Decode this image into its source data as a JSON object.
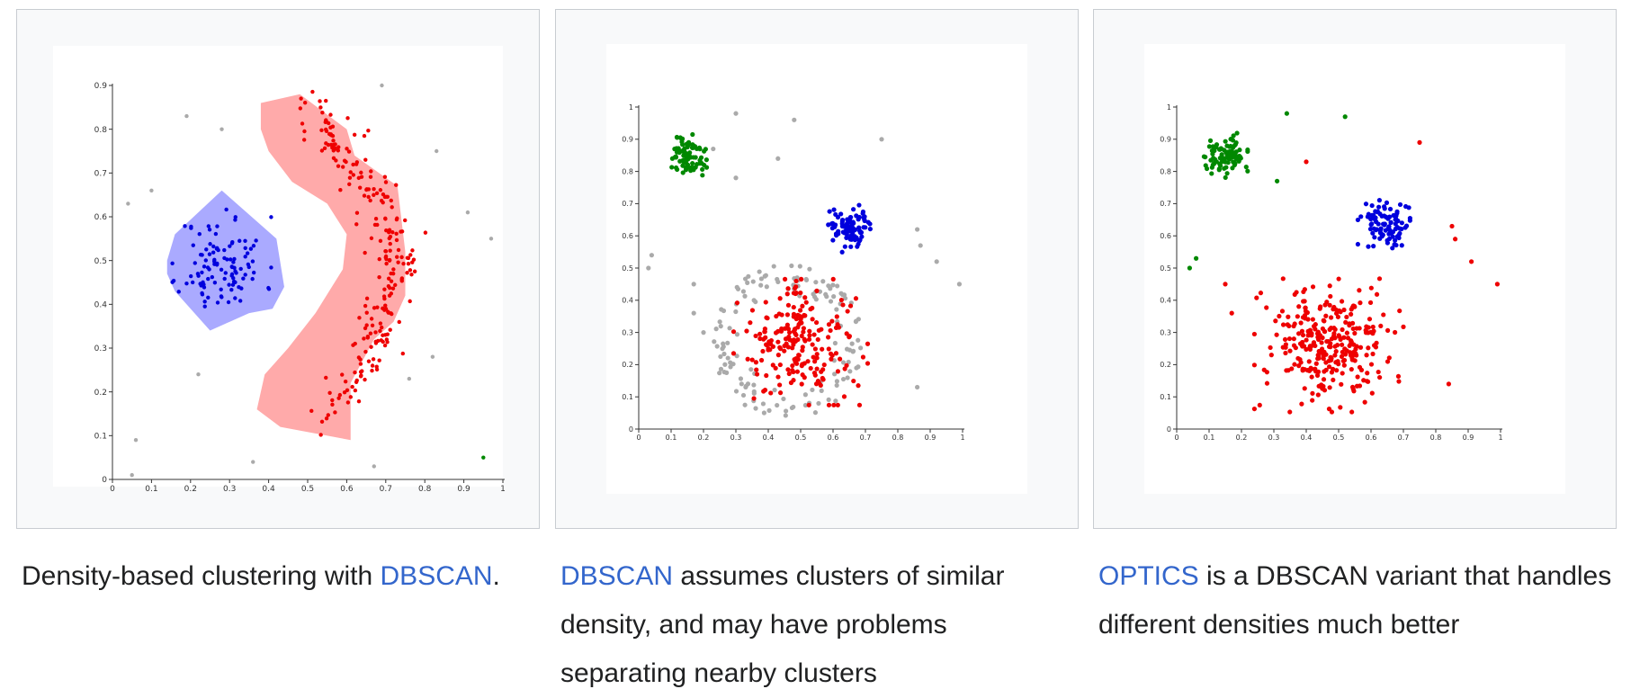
{
  "gallery": [
    {
      "caption": {
        "pre": "Density-based clustering with ",
        "link": "DBSCAN",
        "post": "."
      },
      "chart_data": {
        "type": "scatter",
        "title": "",
        "xlabel": "",
        "ylabel": "",
        "xlim": [
          0,
          1
        ],
        "ylim": [
          0,
          0.9
        ],
        "xticks": [
          "0",
          "0.1",
          "0.2",
          "0.3",
          "0.4",
          "0.5",
          "0.6",
          "0.7",
          "0.8",
          "0.9",
          "1"
        ],
        "yticks": [
          "0",
          "0.1",
          "0.2",
          "0.3",
          "0.4",
          "0.5",
          "0.6",
          "0.7",
          "0.8",
          "0.9"
        ],
        "grid": false,
        "hulls": [
          {
            "color": "#aaaaff",
            "points": [
              [
                0.14,
                0.5
              ],
              [
                0.16,
                0.56
              ],
              [
                0.28,
                0.66
              ],
              [
                0.42,
                0.55
              ],
              [
                0.44,
                0.44
              ],
              [
                0.41,
                0.39
              ],
              [
                0.35,
                0.38
              ],
              [
                0.25,
                0.34
              ],
              [
                0.16,
                0.43
              ],
              [
                0.14,
                0.47
              ]
            ]
          },
          {
            "color": "#ffaaaa",
            "points": [
              [
                0.38,
                0.86
              ],
              [
                0.48,
                0.88
              ],
              [
                0.6,
                0.8
              ],
              [
                0.62,
                0.74
              ],
              [
                0.73,
                0.67
              ],
              [
                0.75,
                0.52
              ],
              [
                0.75,
                0.42
              ],
              [
                0.72,
                0.36
              ],
              [
                0.67,
                0.32
              ],
              [
                0.61,
                0.22
              ],
              [
                0.61,
                0.09
              ],
              [
                0.43,
                0.12
              ],
              [
                0.37,
                0.16
              ],
              [
                0.39,
                0.24
              ],
              [
                0.45,
                0.3
              ],
              [
                0.52,
                0.38
              ],
              [
                0.59,
                0.48
              ],
              [
                0.6,
                0.56
              ],
              [
                0.55,
                0.63
              ],
              [
                0.46,
                0.68
              ],
              [
                0.4,
                0.75
              ],
              [
                0.38,
                0.8
              ]
            ]
          }
        ],
        "series": [
          {
            "color": "#0000dd",
            "generator": "blob",
            "params": {
              "n": 110,
              "cx": 0.28,
              "cy": 0.49,
              "sx": 0.055,
              "sy": 0.055,
              "seed": 11
            }
          },
          {
            "color": "#ee0000",
            "generator": "moon",
            "params": {
              "n": 240,
              "seed": 21
            }
          },
          {
            "color": "#aaaaaa",
            "generator": "list",
            "points": [
              [
                0.04,
                0.63
              ],
              [
                0.1,
                0.66
              ],
              [
                0.19,
                0.83
              ],
              [
                0.28,
                0.8
              ],
              [
                0.69,
                0.9
              ],
              [
                0.83,
                0.75
              ],
              [
                0.91,
                0.61
              ],
              [
                0.97,
                0.55
              ],
              [
                0.22,
                0.24
              ],
              [
                0.06,
                0.09
              ],
              [
                0.05,
                0.01
              ],
              [
                0.36,
                0.04
              ],
              [
                0.67,
                0.03
              ],
              [
                0.76,
                0.23
              ],
              [
                0.82,
                0.28
              ]
            ]
          },
          {
            "color": "#008800",
            "generator": "list",
            "points": [
              [
                0.95,
                0.05
              ]
            ]
          }
        ]
      }
    },
    {
      "caption": {
        "pre": "",
        "link": "DBSCAN",
        "post": " assumes clusters of similar density, and may have problems separating nearby clusters"
      },
      "chart_data": {
        "type": "scatter",
        "title": "",
        "xlabel": "",
        "ylabel": "",
        "xlim": [
          0,
          1
        ],
        "ylim": [
          0,
          1
        ],
        "xticks": [
          "0",
          "0.1",
          "0.2",
          "0.3",
          "0.4",
          "0.5",
          "0.6",
          "0.7",
          "0.8",
          "0.9",
          "1"
        ],
        "yticks": [
          "0",
          "0.1",
          "0.2",
          "0.3",
          "0.4",
          "0.5",
          "0.6",
          "0.7",
          "0.8",
          "0.9",
          "1"
        ],
        "grid": false,
        "series": [
          {
            "color": "#aaaaaa",
            "generator": "ring",
            "params": {
              "n": 140,
              "cx": 0.46,
              "cy": 0.27,
              "r": 0.23,
              "seed": 31
            }
          },
          {
            "color": "#aaaaaa",
            "generator": "list",
            "points": [
              [
                0.04,
                0.54
              ],
              [
                0.03,
                0.5
              ],
              [
                0.17,
                0.45
              ],
              [
                0.17,
                0.36
              ],
              [
                0.2,
                0.3
              ],
              [
                0.3,
                0.98
              ],
              [
                0.43,
                0.84
              ],
              [
                0.48,
                0.96
              ],
              [
                0.3,
                0.78
              ],
              [
                0.23,
                0.87
              ],
              [
                0.75,
                0.9
              ],
              [
                0.86,
                0.62
              ],
              [
                0.87,
                0.57
              ],
              [
                0.92,
                0.52
              ],
              [
                0.99,
                0.45
              ],
              [
                0.86,
                0.13
              ]
            ]
          },
          {
            "color": "#ee0000",
            "generator": "blob",
            "params": {
              "n": 210,
              "cx": 0.5,
              "cy": 0.27,
              "sx": 0.09,
              "sy": 0.085,
              "seed": 41
            }
          },
          {
            "color": "#008800",
            "generator": "blob",
            "params": {
              "n": 90,
              "cx": 0.15,
              "cy": 0.85,
              "sx": 0.03,
              "sy": 0.03,
              "seed": 51
            }
          },
          {
            "color": "#0000dd",
            "generator": "blob",
            "params": {
              "n": 90,
              "cx": 0.65,
              "cy": 0.63,
              "sx": 0.035,
              "sy": 0.035,
              "seed": 61
            }
          }
        ]
      }
    },
    {
      "caption": {
        "pre": "",
        "link": "OPTICS",
        "post": " is a DBSCAN variant that handles different densities much better"
      },
      "chart_data": {
        "type": "scatter",
        "title": "",
        "xlabel": "",
        "ylabel": "",
        "xlim": [
          0,
          1
        ],
        "ylim": [
          0,
          1
        ],
        "xticks": [
          "0",
          "0.1",
          "0.2",
          "0.3",
          "0.4",
          "0.5",
          "0.6",
          "0.7",
          "0.8",
          "0.9",
          "1"
        ],
        "yticks": [
          "0",
          "0.1",
          "0.2",
          "0.3",
          "0.4",
          "0.5",
          "0.6",
          "0.7",
          "0.8",
          "0.9",
          "1"
        ],
        "grid": false,
        "series": [
          {
            "color": "#ee0000",
            "generator": "blob",
            "params": {
              "n": 300,
              "cx": 0.47,
              "cy": 0.26,
              "sx": 0.1,
              "sy": 0.09,
              "seed": 71
            }
          },
          {
            "color": "#ee0000",
            "generator": "list",
            "points": [
              [
                0.75,
                0.89
              ],
              [
                0.4,
                0.83
              ],
              [
                0.85,
                0.63
              ],
              [
                0.86,
                0.59
              ],
              [
                0.91,
                0.52
              ],
              [
                0.99,
                0.45
              ],
              [
                0.15,
                0.45
              ],
              [
                0.17,
                0.36
              ],
              [
                0.84,
                0.14
              ]
            ]
          },
          {
            "color": "#008800",
            "generator": "blob",
            "params": {
              "n": 95,
              "cx": 0.15,
              "cy": 0.85,
              "sx": 0.03,
              "sy": 0.03,
              "seed": 81
            }
          },
          {
            "color": "#008800",
            "generator": "list",
            "points": [
              [
                0.34,
                0.98
              ],
              [
                0.52,
                0.97
              ],
              [
                0.31,
                0.77
              ],
              [
                0.06,
                0.53
              ],
              [
                0.04,
                0.5
              ]
            ]
          },
          {
            "color": "#0000dd",
            "generator": "blob",
            "params": {
              "n": 95,
              "cx": 0.64,
              "cy": 0.63,
              "sx": 0.035,
              "sy": 0.035,
              "seed": 91
            }
          }
        ]
      }
    }
  ]
}
